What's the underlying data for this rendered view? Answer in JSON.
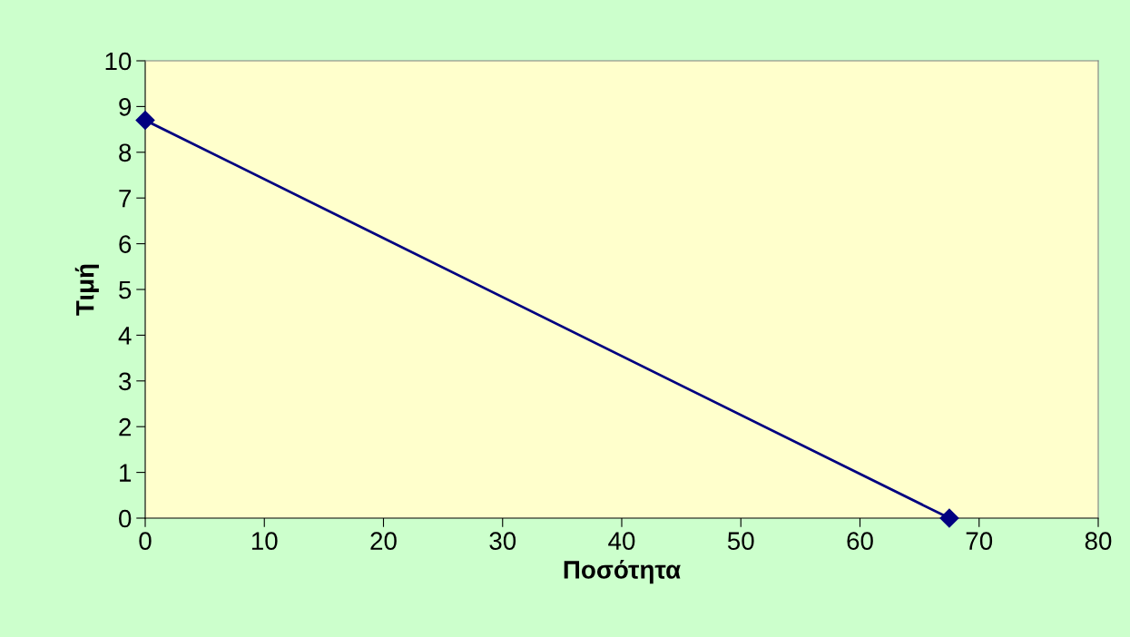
{
  "chart_data": {
    "type": "line",
    "xlabel": "Ποσότητα",
    "ylabel": "Τιμή",
    "x": [
      0,
      67.5
    ],
    "series": [
      {
        "color": "#000080",
        "values": [
          8.7,
          0
        ]
      }
    ],
    "xlim": [
      0,
      80
    ],
    "xticks": [
      0,
      10,
      20,
      30,
      40,
      50,
      60,
      70,
      80
    ],
    "ylim": [
      0,
      10
    ],
    "yticks": [
      0,
      1,
      2,
      3,
      4,
      5,
      6,
      7,
      8,
      9,
      10
    ],
    "grid": false,
    "legend": false,
    "marker": "diamond",
    "line_style": "solid"
  }
}
